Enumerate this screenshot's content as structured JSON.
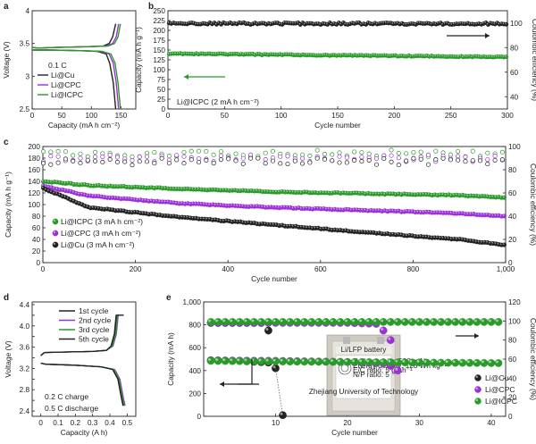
{
  "figure": {
    "panels": [
      {
        "id": "a",
        "chart_data": {
          "type": "line",
          "xlabel": "Capacity (mA h cm⁻²)",
          "ylabel": "Voltage (V)",
          "xlim": [
            0,
            175
          ],
          "ylim": [
            2.5,
            4.0
          ],
          "xticks": [
            0,
            50,
            100,
            150
          ],
          "yticks": [
            2.5,
            3.0,
            3.5,
            4.0
          ],
          "rate_label": "0.1 C",
          "series": [
            {
              "name": "Li@Cu",
              "color": "#222222",
              "charge": [
                [
                  0,
                  3.44
                ],
                [
                  10,
                  3.43
                ],
                [
                  40,
                  3.44
                ],
                [
                  90,
                  3.45
                ],
                [
                  120,
                  3.46
                ],
                [
                  130,
                  3.5
                ],
                [
                  136,
                  3.6
                ],
                [
                  141,
                  3.8
                ]
              ],
              "discharge": [
                [
                  0,
                  3.4
                ],
                [
                  30,
                  3.4
                ],
                [
                  80,
                  3.39
                ],
                [
                  110,
                  3.38
                ],
                [
                  125,
                  3.34
                ],
                [
                  131,
                  3.2
                ],
                [
                  137,
                  2.9
                ],
                [
                  141,
                  2.5
                ]
              ]
            },
            {
              "name": "Li@CPC",
              "color": "#9b30d9",
              "charge": [
                [
                  0,
                  3.44
                ],
                [
                  10,
                  3.43
                ],
                [
                  40,
                  3.44
                ],
                [
                  90,
                  3.45
                ],
                [
                  125,
                  3.46
                ],
                [
                  136,
                  3.5
                ],
                [
                  142,
                  3.6
                ],
                [
                  146,
                  3.8
                ]
              ],
              "discharge": [
                [
                  0,
                  3.4
                ],
                [
                  30,
                  3.4
                ],
                [
                  80,
                  3.39
                ],
                [
                  115,
                  3.38
                ],
                [
                  130,
                  3.34
                ],
                [
                  137,
                  3.2
                ],
                [
                  142,
                  2.9
                ],
                [
                  146,
                  2.5
                ]
              ]
            },
            {
              "name": "Li@ICPC",
              "color": "#2a9a2a",
              "charge": [
                [
                  0,
                  3.44
                ],
                [
                  10,
                  3.43
                ],
                [
                  40,
                  3.44
                ],
                [
                  90,
                  3.45
                ],
                [
                  128,
                  3.46
                ],
                [
                  139,
                  3.5
                ],
                [
                  145,
                  3.6
                ],
                [
                  149,
                  3.8
                ]
              ],
              "discharge": [
                [
                  0,
                  3.4
                ],
                [
                  30,
                  3.4
                ],
                [
                  80,
                  3.39
                ],
                [
                  118,
                  3.38
                ],
                [
                  133,
                  3.34
                ],
                [
                  140,
                  3.2
                ],
                [
                  145,
                  2.9
                ],
                [
                  149,
                  2.5
                ]
              ]
            }
          ]
        }
      },
      {
        "id": "b",
        "chart_data": {
          "type": "scatter",
          "xlabel": "Cycle number",
          "ylabel": "Capacity (mA h g⁻¹)",
          "y2label": "Coulombic efficiency (%)",
          "xlim": [
            0,
            300
          ],
          "ylim": [
            0,
            250
          ],
          "y2lim": [
            30,
            110
          ],
          "xticks": [
            0,
            50,
            100,
            150,
            200,
            250,
            300
          ],
          "yticks": [
            0,
            25,
            50,
            75,
            100,
            125,
            150,
            175,
            200,
            225,
            250
          ],
          "y2ticks": [
            40,
            60,
            80,
            100
          ],
          "annotation": "Li@ICPC (2 mA h cm⁻²)",
          "series": [
            {
              "name": "Coulombic efficiency",
              "color": "#222222",
              "axis": "right",
              "x_range": [
                1,
                300
              ],
              "y_start": 99.6,
              "y_end": 99.4
            },
            {
              "name": "Capacity",
              "color": "#2a9a2a",
              "axis": "left",
              "x_range": [
                1,
                300
              ],
              "y_start": 141,
              "y_end": 132
            }
          ]
        }
      },
      {
        "id": "c",
        "chart_data": {
          "type": "scatter",
          "xlabel": "Cycle number",
          "ylabel": "Capacity (mA h g⁻¹)",
          "y2label": "Coulombic efficiency (%)",
          "xlim": [
            0,
            1000
          ],
          "ylim": [
            0,
            200
          ],
          "y2lim": [
            0,
            100
          ],
          "xticks": [
            0,
            200,
            400,
            600,
            800,
            1000
          ],
          "xticklabels": [
            "0",
            "200",
            "400",
            "600",
            "800",
            "1,000"
          ],
          "yticks": [
            0,
            20,
            40,
            60,
            80,
            100,
            120,
            140,
            160,
            180,
            200
          ],
          "y2ticks": [
            0,
            20,
            40,
            60,
            80,
            100
          ],
          "series": [
            {
              "name": "Li@ICPC (3 mA h cm⁻²)",
              "color": "#2a9a2a",
              "capacity": [
                [
                  1,
                  140
                ],
                [
                  100,
                  133
                ],
                [
                  300,
                  127
                ],
                [
                  500,
                  122
                ],
                [
                  700,
                  119
                ],
                [
                  900,
                  116
                ],
                [
                  1000,
                  112
                ]
              ],
              "ce": 94
            },
            {
              "name": "Li@CPC (3 mA h cm⁻²)",
              "color": "#9b30d9",
              "capacity": [
                [
                  1,
                  132
                ],
                [
                  100,
                  115
                ],
                [
                  300,
                  102
                ],
                [
                  500,
                  95
                ],
                [
                  700,
                  90
                ],
                [
                  900,
                  85
                ],
                [
                  1000,
                  80
                ]
              ],
              "ce": 90
            },
            {
              "name": "Li@Cu (3 mA h cm⁻²)",
              "color": "#222222",
              "capacity": [
                [
                  1,
                  128
                ],
                [
                  100,
                  95
                ],
                [
                  300,
                  78
                ],
                [
                  500,
                  65
                ],
                [
                  700,
                  52
                ],
                [
                  900,
                  40
                ],
                [
                  1000,
                  30
                ]
              ],
              "ce": 87
            }
          ]
        }
      },
      {
        "id": "d",
        "chart_data": {
          "type": "line",
          "xlabel": "Capacity (A h)",
          "ylabel": "Voltage (V)",
          "xlim": [
            -0.05,
            0.55
          ],
          "ylim": [
            2.3,
            4.45
          ],
          "xticks": [
            0,
            0.1,
            0.2,
            0.3,
            0.4,
            0.5
          ],
          "xticklabels": [
            "0",
            "0.1",
            "0.2",
            "0.3",
            "0.4",
            "0.5"
          ],
          "yticks": [
            2.4,
            2.6,
            2.8,
            3.0,
            3.2,
            3.4,
            3.6,
            3.8,
            4.0,
            4.2,
            4.4
          ],
          "yticklabels": [
            "2.4",
            "",
            "2.8",
            "",
            "3.2",
            "",
            "3.6",
            "",
            "4.0",
            "",
            "4.4"
          ],
          "condition": [
            "0.2 C charge",
            "0.5 C discharge"
          ],
          "series": [
            {
              "name": "1st cycle",
              "color": "#222222"
            },
            {
              "name": "2nd cycle",
              "color": "#9b30d9"
            },
            {
              "name": "3rd cycle",
              "color": "#2a9a2a"
            },
            {
              "name": "5th cycle",
              "color": "#222222"
            }
          ]
        }
      },
      {
        "id": "e",
        "chart_data": {
          "type": "scatter",
          "xlabel": "Cycle number",
          "ylabel": "Capacity (mA h)",
          "y2label": "Coulombic efficiency (%)",
          "xlim": [
            0,
            42
          ],
          "ylim": [
            0,
            1000
          ],
          "y2lim": [
            0,
            120
          ],
          "xticks": [
            10,
            20,
            30,
            40
          ],
          "yticks": [
            0,
            200,
            400,
            600,
            800,
            1000
          ],
          "yticklabels": [
            "0",
            "200",
            "400",
            "600",
            "800",
            "1,000"
          ],
          "y2ticks": [
            0,
            20,
            40,
            60,
            80,
            100,
            120
          ],
          "inset_photo": {
            "title": "Li/LFP battery",
            "lines": [
              "Cell capacity: 500 mAh",
              "Energy density: 128 Wh kg⁻¹",
              "E/C ratio: 5 g Ah⁻¹",
              "N/P ratio: 5"
            ],
            "caption": "Zhejiang University of Technology"
          },
          "series": [
            {
              "name": "Li@Cu",
              "color": "#222222",
              "capacity": [
                [
                  1,
                  490
                ],
                [
                  5,
                  485
                ],
                [
                  9,
                  470
                ],
                [
                  10,
                  420
                ],
                [
                  11,
                  10
                ]
              ],
              "ce": [
                [
                  1,
                  98
                ],
                [
                  5,
                  98
                ],
                [
                  8,
                  98
                ],
                [
                  9,
                  90
                ]
              ]
            },
            {
              "name": "Li@CPC",
              "color": "#9b30d9",
              "capacity": [
                [
                  1,
                  488
                ],
                [
                  10,
                  485
                ],
                [
                  20,
                  475
                ],
                [
                  25,
                  462
                ],
                [
                  26,
                  440
                ],
                [
                  27,
                  400
                ]
              ],
              "ce": [
                [
                  1,
                  98
                ],
                [
                  20,
                  98
                ],
                [
                  24,
                  97
                ],
                [
                  25,
                  90
                ],
                [
                  26,
                  80
                ]
              ]
            },
            {
              "name": "Li@ICPC",
              "color": "#2a9a2a",
              "capacity": [
                [
                  1,
                  485
                ],
                [
                  10,
                  480
                ],
                [
                  20,
                  475
                ],
                [
                  30,
                  470
                ],
                [
                  41,
                  465
                ]
              ],
              "ce": [
                [
                  1,
                  99
                ],
                [
                  41,
                  99
                ]
              ]
            }
          ]
        }
      }
    ]
  }
}
